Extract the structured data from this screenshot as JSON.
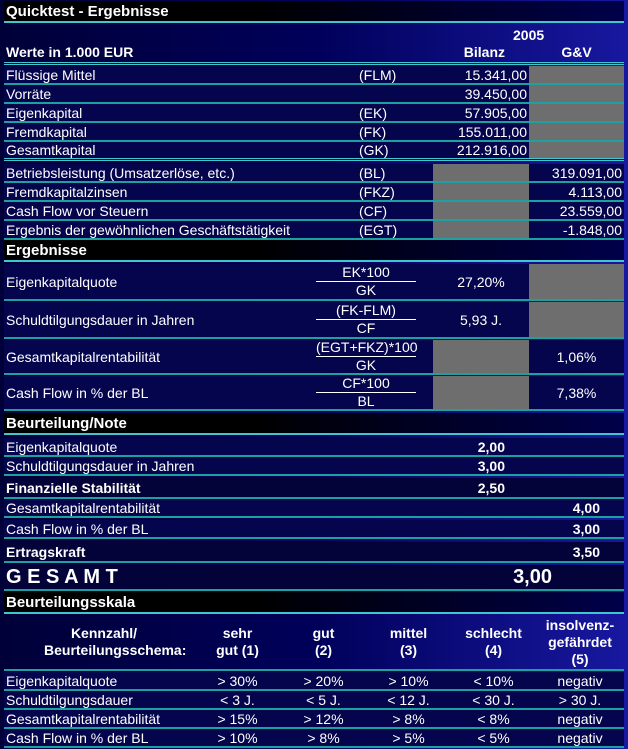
{
  "title": "Quicktest - Ergebnisse",
  "year": "2005",
  "units_label": "Werte in 1.000 EUR",
  "col_bilanz": "Bilanz",
  "col_guv": "G&V",
  "inputs": [
    {
      "label": "Flüssige Mittel",
      "abbr": "(FLM)",
      "bilanz": "15.341,00",
      "guv": ""
    },
    {
      "label": "Vorräte",
      "abbr": "",
      "bilanz": "39.450,00",
      "guv": ""
    },
    {
      "label": "Eigenkapital",
      "abbr": "(EK)",
      "bilanz": "57.905,00",
      "guv": ""
    },
    {
      "label": "Fremdkapital",
      "abbr": "(FK)",
      "bilanz": "155.011,00",
      "guv": ""
    },
    {
      "label": "Gesamtkapital",
      "abbr": "(GK)",
      "bilanz": "212.916,00",
      "guv": ""
    },
    {
      "label": "Betriebsleistung (Umsatzerlöse, etc.)",
      "abbr": "(BL)",
      "bilanz": "",
      "guv": "319.091,00"
    },
    {
      "label": "Fremdkapitalzinsen",
      "abbr": "(FKZ)",
      "bilanz": "",
      "guv": "4.113,00"
    },
    {
      "label": "Cash Flow vor Steuern",
      "abbr": "(CF)",
      "bilanz": "",
      "guv": "23.559,00"
    },
    {
      "label": "Ergebnis der gewöhnlichen Geschäftstätigkeit",
      "abbr": "(EGT)",
      "bilanz": "",
      "guv": "-1.848,00"
    }
  ],
  "results_title": "Ergebnisse",
  "results": [
    {
      "label": "Eigenkapitalquote",
      "num": "EK*100",
      "den": "GK",
      "bilanz": "27,20%",
      "guv": ""
    },
    {
      "label": "Schuldtilgungsdauer in Jahren",
      "num": "(FK-FLM)",
      "den": "CF",
      "bilanz": "5,93 J.",
      "guv": ""
    },
    {
      "label": "Gesamtkapitalrentabilität",
      "num": "(EGT+FKZ)*100",
      "den": "GK",
      "bilanz": "",
      "guv": "1,06%"
    },
    {
      "label": "Cash Flow in % der BL",
      "num": "CF*100",
      "den": "BL",
      "bilanz": "",
      "guv": "7,38%"
    }
  ],
  "rating_title": "Beurteilung/Note",
  "ratings": [
    {
      "label": "Eigenkapitalquote",
      "bilanz": "2,00",
      "guv": ""
    },
    {
      "label": "Schuldtilgungsdauer in Jahren",
      "bilanz": "3,00",
      "guv": ""
    },
    {
      "label": "Finanzielle Stabilität",
      "bilanz": "2,50",
      "guv": ""
    },
    {
      "label": "Gesamtkapitalrentabilität",
      "bilanz": "",
      "guv": "4,00"
    },
    {
      "label": "Cash Flow in % der BL",
      "bilanz": "",
      "guv": "3,00"
    },
    {
      "label": "Ertragskraft",
      "bilanz": "",
      "guv": "3,50"
    }
  ],
  "total_label": "G E S A M T",
  "total_value": "3,00",
  "scale_title": "Beurteilungsskala",
  "scale_headers": [
    "Kennzahl/ Beurteilungsschema:",
    "sehr gut (1)",
    "gut (2)",
    "mittel (3)",
    "schlecht (4)",
    "insolvenz-gefährdet (5)"
  ],
  "scale_rows": [
    [
      "Eigenkapitalquote",
      "> 30%",
      "> 20%",
      "> 10%",
      "< 10%",
      "negativ"
    ],
    [
      "Schuldtilgungsdauer",
      "< 3 J.",
      "< 5 J.",
      "< 12 J.",
      "< 30 J.",
      "> 30 J."
    ],
    [
      "Gesamtkapitalrentabilität",
      "> 15%",
      "> 12%",
      "> 8%",
      "< 8%",
      "negativ"
    ],
    [
      "Cash Flow in % der BL",
      "> 10%",
      "> 8%",
      "> 5%",
      "< 5%",
      "negativ"
    ]
  ],
  "colors": {
    "gray_cell": "#6e6e6e",
    "separator": "#3fc6d0",
    "row_bg": "#05054e"
  }
}
